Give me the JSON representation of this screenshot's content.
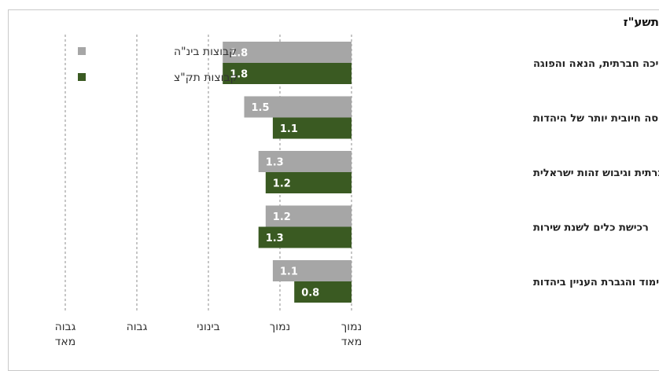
{
  "page": {
    "title_fragment": "תשע\"ז"
  },
  "chart_data": {
    "type": "bar",
    "orientation": "horizontal",
    "categories": [
      "תמיכה חברתית, הנאה והפוגה",
      "פיתוח תפיסה חיובית יותר של היהדות",
      "פיתוח מודעות חברתית וגיבוש זהות ישראלית",
      "רכישת כלים לשנת שירות",
      "לימוד והגברת העניין ביהדות"
    ],
    "series": [
      {
        "name": "קבוצות בינ\"ה",
        "color": "#a6a6a6",
        "values": [
          1.8,
          1.5,
          1.3,
          1.2,
          1.1
        ]
      },
      {
        "name": "קבוצות תק\"צ",
        "color": "#3a5a22",
        "values": [
          1.8,
          1.1,
          1.2,
          1.3,
          0.8
        ]
      }
    ],
    "x_ticks": [
      {
        "value": 0,
        "lines": [
          "נמוך",
          "מאד"
        ]
      },
      {
        "value": 1,
        "lines": [
          "נמוך"
        ]
      },
      {
        "value": 2,
        "lines": [
          "בינוני"
        ]
      },
      {
        "value": 3,
        "lines": [
          "גבוה"
        ]
      },
      {
        "value": 4,
        "lines": [
          "גבוה",
          "מאד"
        ]
      }
    ],
    "xlim": [
      0,
      4
    ],
    "axis_direction": "right-to-left",
    "grid": "dashed vertical",
    "legend_placement": "top-left",
    "value_labels": true
  }
}
